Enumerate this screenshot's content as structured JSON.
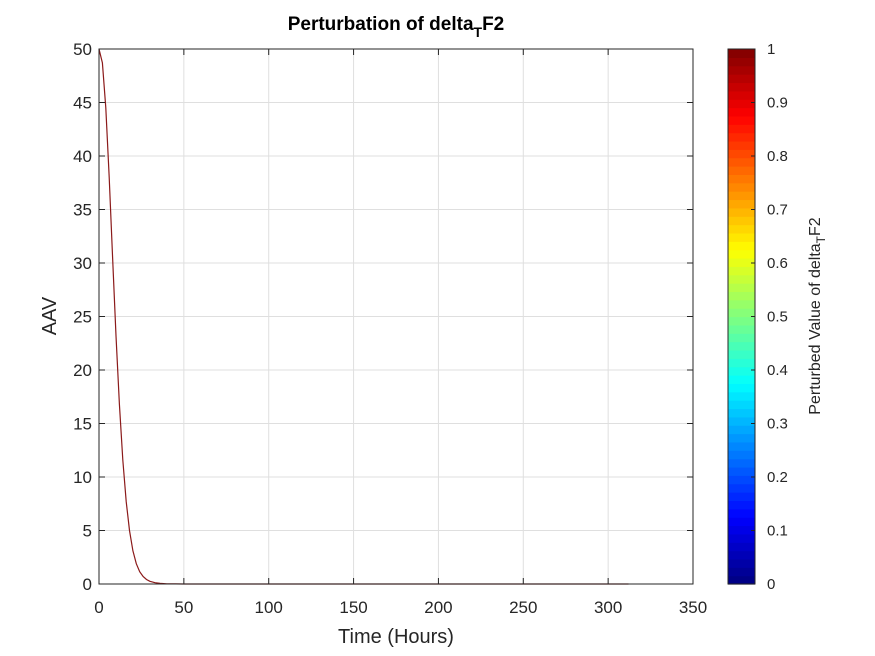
{
  "chart_data": {
    "type": "line",
    "title_main": "Perturbation of delta",
    "title_sub": "T",
    "title_tail": "F2",
    "xlabel": "Time (Hours)",
    "ylabel": "AAV",
    "xlim": [
      0,
      350
    ],
    "ylim": [
      0,
      50
    ],
    "xticks": [
      0,
      50,
      100,
      150,
      200,
      250,
      300,
      350
    ],
    "yticks": [
      0,
      5,
      10,
      15,
      20,
      25,
      30,
      35,
      40,
      45,
      50
    ],
    "grid": true,
    "series": [
      {
        "color": "#8b1a1a",
        "x": [
          0,
          2,
          4,
          6,
          8,
          10,
          12,
          14,
          16,
          18,
          20,
          22,
          24,
          26,
          28,
          30,
          33,
          36,
          40,
          45,
          50,
          60,
          80,
          100,
          150,
          200,
          250,
          300,
          312
        ],
        "y": [
          50,
          48.7,
          44.5,
          38.0,
          30.5,
          23.2,
          16.8,
          11.6,
          7.7,
          5.0,
          3.1,
          1.9,
          1.15,
          0.7,
          0.42,
          0.25,
          0.12,
          0.06,
          0.02,
          0.006,
          0.002,
          0,
          0,
          0,
          0,
          0,
          0,
          0,
          0
        ]
      }
    ],
    "colorbar": {
      "label_main": "Perturbed Value of delta",
      "label_sub": "T",
      "label_tail": "F2",
      "range": [
        0,
        1
      ],
      "ticks": [
        0,
        0.1,
        0.2,
        0.3,
        0.4,
        0.5,
        0.6,
        0.7,
        0.8,
        0.9,
        1
      ],
      "tick_labels": [
        "0",
        "0.1",
        "0.2",
        "0.3",
        "0.4",
        "0.5",
        "0.6",
        "0.7",
        "0.8",
        "0.9",
        "1"
      ],
      "colormap": "jet",
      "levels": 64
    }
  }
}
